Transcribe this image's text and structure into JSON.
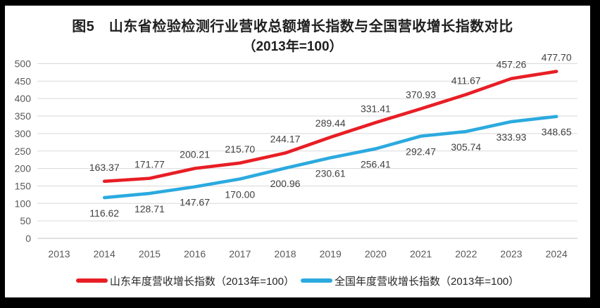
{
  "colors": {
    "figure_border": "#000000",
    "page_background": "#ffffff",
    "grid": "#d9d9d9",
    "axis_line": "#c2c2c2",
    "tick_label": "#595959",
    "data_label": "#404040",
    "title": "#1f1f1f"
  },
  "chart_data": {
    "type": "line",
    "title": "图5　山东省检验检测行业营收总额增长指数与全国营收增长指数对比",
    "subtitle": "（2013年=100）",
    "x_categories": [
      "2013",
      "2014",
      "2015",
      "2016",
      "2017",
      "2018",
      "2019",
      "2020",
      "2021",
      "2022",
      "2023",
      "2024"
    ],
    "ylim": [
      0,
      500
    ],
    "ytick_step": 50,
    "grid": "horizontal",
    "legend_position": "bottom",
    "series": [
      {
        "name": "山东年度营收增长指数（2013年=100）",
        "color": "#e81e25",
        "label_side": "above",
        "x": [
          "2014",
          "2015",
          "2016",
          "2017",
          "2018",
          "2019",
          "2020",
          "2021",
          "2022",
          "2023",
          "2024"
        ],
        "values": [
          163.37,
          171.77,
          200.21,
          215.7,
          244.17,
          289.44,
          331.41,
          370.93,
          411.67,
          457.26,
          477.7
        ],
        "labels": [
          "163.37",
          "171.77",
          "200.21",
          "215.70",
          "244.17",
          "289.44",
          "331.41",
          "370.93",
          "411.67",
          "457.26",
          "477.70"
        ]
      },
      {
        "name": "全国年度营收增长指数（2013年=100）",
        "color": "#2baadf",
        "label_side": "below",
        "x": [
          "2014",
          "2015",
          "2016",
          "2017",
          "2018",
          "2019",
          "2020",
          "2021",
          "2022",
          "2023",
          "2024"
        ],
        "values": [
          116.62,
          128.71,
          147.67,
          170.0,
          200.96,
          230.61,
          256.41,
          292.47,
          305.74,
          333.93,
          348.65
        ],
        "labels": [
          "116.62",
          "128.71",
          "147.67",
          "170.00",
          "200.96",
          "230.61",
          "256.41",
          "292.47",
          "305.74",
          "333.93",
          "348.65"
        ]
      }
    ]
  }
}
